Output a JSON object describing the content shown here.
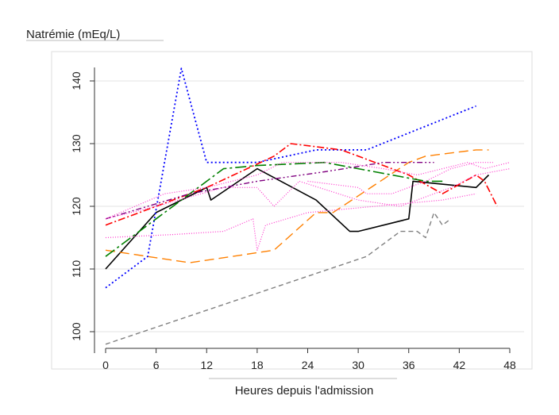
{
  "chart_data": {
    "type": "line",
    "title": "",
    "ylabel": "Natrémie (mEq/L)",
    "xlabel": "Heures depuis l'admission",
    "xlim": [
      -1,
      49
    ],
    "ylim": [
      97,
      147
    ],
    "x_ticks": [
      0,
      6,
      12,
      18,
      24,
      30,
      36,
      42,
      48
    ],
    "y_ticks": [
      100,
      110,
      120,
      130,
      140
    ],
    "grid": "horizontal",
    "legend": "none",
    "series": [
      {
        "color": "#000000",
        "dash": "solid",
        "width": 1.6,
        "points": [
          [
            0,
            110
          ],
          [
            6,
            119
          ],
          [
            12,
            123
          ],
          [
            12.5,
            121
          ],
          [
            18,
            126
          ],
          [
            25,
            121
          ],
          [
            29,
            116
          ],
          [
            30,
            116
          ],
          [
            36,
            118
          ],
          [
            36.5,
            124
          ],
          [
            44,
            123
          ],
          [
            45.5,
            125
          ]
        ]
      },
      {
        "color": "#ff8000",
        "dash": "long",
        "width": 1.4,
        "points": [
          [
            0,
            113
          ],
          [
            10,
            111
          ],
          [
            20,
            113
          ],
          [
            25,
            119
          ],
          [
            27,
            119
          ],
          [
            36,
            127
          ],
          [
            38,
            128
          ],
          [
            44,
            129
          ],
          [
            45.5,
            129
          ]
        ]
      },
      {
        "color": "#808080",
        "dash": "short",
        "width": 1.4,
        "points": [
          [
            0,
            98
          ],
          [
            31,
            112
          ],
          [
            35,
            116
          ],
          [
            37,
            116
          ],
          [
            38,
            115
          ],
          [
            39,
            119
          ],
          [
            40,
            117
          ],
          [
            41,
            118
          ]
        ]
      },
      {
        "color": "#0000ff",
        "dash": "dot",
        "width": 1.8,
        "points": [
          [
            0,
            107
          ],
          [
            5,
            112
          ],
          [
            9,
            142
          ],
          [
            12,
            127
          ],
          [
            18,
            127
          ],
          [
            25,
            129
          ],
          [
            31,
            129
          ],
          [
            44,
            136
          ]
        ]
      },
      {
        "color": "#ff0000",
        "dash": "dashdot",
        "width": 1.6,
        "points": [
          [
            0,
            117
          ],
          [
            12,
            123
          ],
          [
            20,
            128
          ],
          [
            22,
            130
          ],
          [
            28,
            129
          ],
          [
            36,
            125
          ],
          [
            40,
            122
          ],
          [
            44,
            125
          ],
          [
            45,
            124
          ],
          [
            46.5,
            120
          ]
        ]
      },
      {
        "color": "#008000",
        "dash": "longdashdot",
        "width": 1.6,
        "points": [
          [
            0,
            112
          ],
          [
            6,
            118
          ],
          [
            14,
            126
          ],
          [
            18,
            126.5
          ],
          [
            26,
            127
          ],
          [
            30,
            126
          ],
          [
            38,
            124
          ],
          [
            40,
            124
          ]
        ]
      },
      {
        "color": "#800080",
        "dash": "dashdotdot",
        "width": 1.4,
        "points": [
          [
            0,
            118
          ],
          [
            10,
            122
          ],
          [
            18,
            124
          ],
          [
            26,
            125.5
          ],
          [
            33,
            127
          ],
          [
            39,
            127
          ]
        ]
      },
      {
        "color": "#ff33cc",
        "dash": "tiny",
        "width": 1.2,
        "points": [
          [
            0,
            118
          ],
          [
            7,
            122
          ],
          [
            12,
            123
          ],
          [
            18,
            125
          ],
          [
            21,
            127
          ],
          [
            28,
            127
          ],
          [
            33,
            126
          ],
          [
            37,
            125
          ],
          [
            43,
            127
          ],
          [
            45,
            126
          ],
          [
            48,
            127
          ]
        ]
      },
      {
        "color": "#ff33cc",
        "dash": "tiny",
        "width": 1.2,
        "points": [
          [
            0,
            118
          ],
          [
            6,
            120
          ],
          [
            14,
            123
          ],
          [
            18,
            123
          ],
          [
            20,
            120
          ],
          [
            23,
            124
          ],
          [
            30,
            121
          ],
          [
            35,
            120
          ],
          [
            41,
            123
          ],
          [
            44,
            125
          ],
          [
            48,
            126
          ]
        ]
      },
      {
        "color": "#ff33cc",
        "dash": "tiny",
        "width": 1.2,
        "points": [
          [
            0,
            115
          ],
          [
            8,
            115.5
          ],
          [
            14,
            116
          ],
          [
            17.5,
            118
          ],
          [
            18,
            113
          ],
          [
            19,
            117
          ],
          [
            24,
            119
          ],
          [
            32,
            120
          ],
          [
            40,
            121
          ],
          [
            44,
            122
          ]
        ]
      },
      {
        "color": "#ff33cc",
        "dash": "tiny",
        "width": 1.2,
        "points": [
          [
            24,
            124
          ],
          [
            30,
            123
          ],
          [
            31,
            122
          ],
          [
            34,
            122
          ],
          [
            38,
            124
          ],
          [
            41,
            126
          ],
          [
            44,
            127
          ],
          [
            46,
            127
          ]
        ]
      }
    ]
  }
}
